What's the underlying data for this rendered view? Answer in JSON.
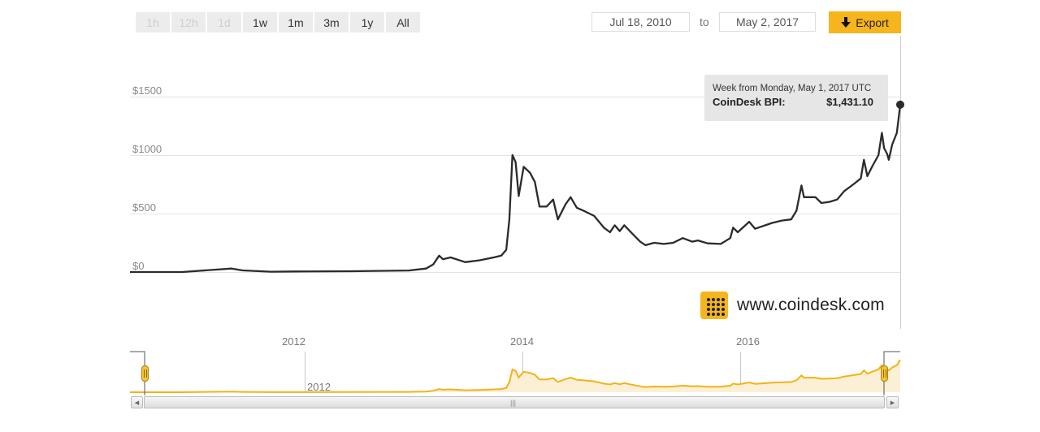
{
  "range_selector": {
    "buttons": [
      {
        "label": "1h",
        "enabled": false
      },
      {
        "label": "12h",
        "enabled": false
      },
      {
        "label": "1d",
        "enabled": false
      },
      {
        "label": "1w",
        "enabled": true
      },
      {
        "label": "1m",
        "enabled": true
      },
      {
        "label": "3m",
        "enabled": true
      },
      {
        "label": "1y",
        "enabled": true
      },
      {
        "label": "All",
        "enabled": true
      }
    ]
  },
  "date_range": {
    "from": "Jul 18, 2010",
    "to_label": "to",
    "to": "May 2, 2017"
  },
  "export_button": {
    "label": "Export",
    "icon": "down-arrow-icon"
  },
  "tooltip": {
    "title": "Week from Monday, May 1, 2017 UTC",
    "series_label": "CoinDesk BPI:",
    "value": "$1,431.10"
  },
  "brand": {
    "text": "www.coindesk.com",
    "icon": "coindesk-logo-icon"
  },
  "colors": {
    "line": "#2b2b2b",
    "accent": "#f6b51d",
    "navigator_line": "#f2b316",
    "navigator_fill": "#fbefd6",
    "grid": "#e4e4e4"
  },
  "chart_data": {
    "type": "line",
    "title": "",
    "series": [
      {
        "name": "CoinDesk BPI",
        "x": [
          "2010-07-18",
          "2011-01-01",
          "2011-06-10",
          "2011-07-15",
          "2011-10-15",
          "2012-01-01",
          "2012-07-01",
          "2013-01-01",
          "2013-02-25",
          "2013-03-20",
          "2013-04-08",
          "2013-04-20",
          "2013-05-15",
          "2013-07-01",
          "2013-08-15",
          "2013-10-01",
          "2013-10-25",
          "2013-11-10",
          "2013-11-20",
          "2013-11-30",
          "2013-12-10",
          "2013-12-20",
          "2014-01-05",
          "2014-01-25",
          "2014-02-10",
          "2014-02-25",
          "2014-03-20",
          "2014-04-10",
          "2014-04-25",
          "2014-05-20",
          "2014-06-05",
          "2014-06-25",
          "2014-07-20",
          "2014-08-20",
          "2014-09-20",
          "2014-10-10",
          "2014-10-25",
          "2014-11-10",
          "2014-11-25",
          "2014-12-20",
          "2015-01-15",
          "2015-02-01",
          "2015-03-01",
          "2015-04-01",
          "2015-05-01",
          "2015-06-01",
          "2015-07-01",
          "2015-07-20",
          "2015-08-20",
          "2015-10-01",
          "2015-11-01",
          "2015-11-10",
          "2015-11-25",
          "2016-01-01",
          "2016-01-20",
          "2016-03-15",
          "2016-04-15",
          "2016-05-15",
          "2016-06-01",
          "2016-06-17",
          "2016-06-25",
          "2016-07-15",
          "2016-08-01",
          "2016-08-20",
          "2016-09-15",
          "2016-10-10",
          "2016-11-01",
          "2016-12-01",
          "2016-12-25",
          "2017-01-04",
          "2017-01-15",
          "2017-02-01",
          "2017-02-20",
          "2017-03-03",
          "2017-03-10",
          "2017-03-20",
          "2017-03-25",
          "2017-04-05",
          "2017-04-20",
          "2017-05-01"
        ],
        "values": [
          0.06,
          0.3,
          30,
          14,
          3,
          5,
          7,
          13,
          30,
          65,
          140,
          110,
          125,
          85,
          100,
          125,
          140,
          190,
          450,
          1000,
          940,
          650,
          900,
          850,
          770,
          560,
          560,
          620,
          450,
          580,
          640,
          550,
          520,
          480,
          380,
          340,
          400,
          350,
          400,
          330,
          260,
          230,
          250,
          240,
          250,
          290,
          260,
          270,
          245,
          240,
          290,
          380,
          340,
          430,
          370,
          420,
          440,
          450,
          525,
          740,
          640,
          640,
          640,
          590,
          600,
          620,
          690,
          750,
          800,
          960,
          820,
          910,
          1000,
          1190,
          1060,
          1010,
          960,
          1090,
          1190,
          1431.1
        ]
      }
    ],
    "xlabel": "",
    "ylabel": "",
    "y_ticks": [
      "$0",
      "$500",
      "$1000",
      "$1500"
    ],
    "ylim": [
      0,
      1800
    ],
    "x_range": [
      "2010-07-18",
      "2017-05-01"
    ],
    "navigator_ticks": [
      "2012",
      "2014",
      "2016"
    ],
    "grid": true,
    "legend": "none",
    "highlighted_point": {
      "x": "2017-05-01",
      "value": 1431.1
    }
  }
}
